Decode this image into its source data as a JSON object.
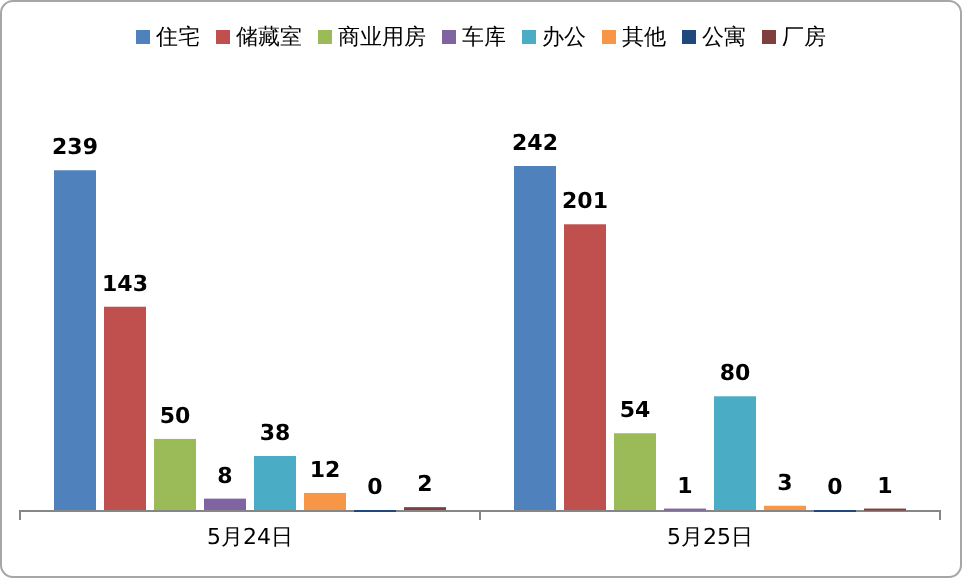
{
  "chart_data": {
    "type": "bar",
    "categories": [
      "5月24日",
      "5月25日"
    ],
    "data_labels": true,
    "legend": "top",
    "series": [
      {
        "name": "住宅",
        "color": "#4f81bd",
        "values": [
          239,
          242
        ]
      },
      {
        "name": "储藏室",
        "color": "#c0504d",
        "values": [
          143,
          201
        ]
      },
      {
        "name": "商业用房",
        "color": "#9bbb59",
        "values": [
          50,
          54
        ]
      },
      {
        "name": "车库",
        "color": "#8064a2",
        "values": [
          8,
          1
        ]
      },
      {
        "name": "办公",
        "color": "#4bacc6",
        "values": [
          38,
          80
        ]
      },
      {
        "name": "其他",
        "color": "#f79646",
        "values": [
          12,
          3
        ]
      },
      {
        "name": "公寓",
        "color": "#1f497d",
        "values": [
          0,
          0
        ]
      },
      {
        "name": "厂房",
        "color": "#7f3f3f",
        "values": [
          2,
          1
        ]
      }
    ]
  }
}
